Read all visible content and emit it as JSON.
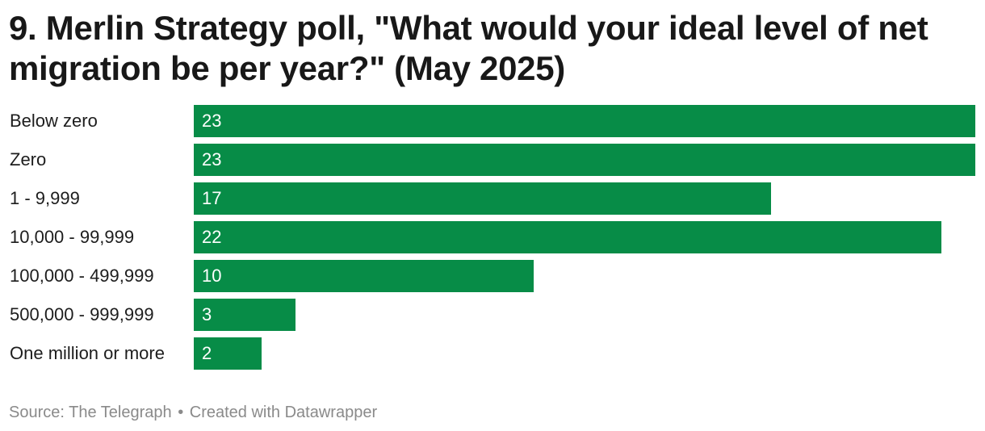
{
  "title": "9. Merlin Strategy poll, \"What would your ideal level of net migration be per year?\" (May 2025)",
  "footer": {
    "source": "Source: The Telegraph",
    "separator": "•",
    "credit": "Created with Datawrapper"
  },
  "colors": {
    "bar": "#078c47",
    "value_text": "#ffffff",
    "label_text": "#1d1d1d",
    "footer_text": "#8a8a8a"
  },
  "chart_data": {
    "type": "bar",
    "orientation": "horizontal",
    "title": "9. Merlin Strategy poll, \"What would your ideal level of net migration be per year?\" (May 2025)",
    "categories": [
      "Below zero",
      "Zero",
      "1 - 9,999",
      "10,000 - 99,999",
      "100,000 - 499,999",
      "500,000 - 999,999",
      "One million or more"
    ],
    "values": [
      23,
      23,
      17,
      22,
      10,
      3,
      2
    ],
    "value_labels": [
      "23",
      "23",
      "17",
      "22",
      "10",
      "3",
      "2"
    ],
    "xlim": [
      0,
      23
    ],
    "grid": false,
    "legend": "none"
  }
}
